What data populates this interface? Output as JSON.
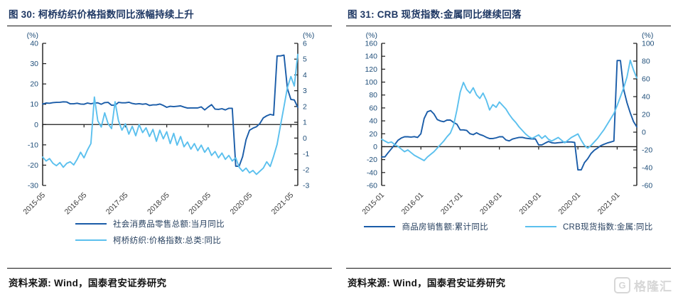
{
  "page": {
    "source_label": "资料来源: Wind，国泰君安证券研究",
    "watermark": {
      "icon_letter": "G",
      "text": "格隆汇"
    }
  },
  "colors": {
    "dark": "#1a5ca8",
    "light": "#5bc0ee",
    "title_navy": "#1f3864",
    "axis_label_navy": "#1f4e79",
    "axis_line": "#1a1a1a",
    "x_label": "#3a3a3a",
    "legend_text": "#27405f",
    "watermark_gray": "#d7d7d7"
  },
  "chart_data": [
    {
      "type": "line",
      "title": "图 30:  柯桥纺织价格指数同比涨幅持续上升",
      "left_axis": {
        "unit": "(%)",
        "min": -30,
        "max": 40,
        "step": 10
      },
      "right_axis": {
        "unit": "(%)",
        "min": -3,
        "max": 6,
        "step": 1
      },
      "x_tick_labels": [
        "2015-05",
        "2016-05",
        "2017-05",
        "2018-05",
        "2019-05",
        "2020-05",
        "2021-05"
      ],
      "x_tick_every_n_points": 12,
      "x_range_note": "monthly 2015-05 to 2021-07",
      "grid": false,
      "legend_position": "bottom",
      "series": [
        {
          "name": "社会消费品零售总额:当月同比",
          "axis": "left",
          "color_key": "dark",
          "values": [
            10.1,
            10.6,
            10.5,
            10.8,
            10.9,
            11.0,
            11.2,
            11.1,
            10.2,
            10.2,
            10.5,
            10.1,
            10.0,
            10.6,
            10.2,
            10.6,
            10.7,
            10.0,
            10.8,
            10.9,
            9.5,
            9.5,
            10.9,
            10.7,
            10.7,
            11.0,
            10.4,
            10.1,
            10.3,
            10.0,
            10.2,
            9.4,
            9.7,
            9.7,
            10.1,
            9.4,
            8.5,
            9.0,
            8.8,
            9.0,
            9.2,
            8.6,
            8.1,
            8.2,
            8.2,
            8.2,
            8.7,
            7.2,
            8.6,
            9.8,
            7.6,
            7.5,
            7.8,
            7.2,
            8.0,
            8.0,
            -20.5,
            -20.5,
            -15.8,
            -7.5,
            -2.8,
            -1.8,
            -1.1,
            0.5,
            3.3,
            4.3,
            5.0,
            4.6,
            33.8,
            33.8,
            34.2,
            17.7,
            12.4,
            12.1,
            8.5
          ]
        },
        {
          "name": "柯桥纺织:价格指数:总类:同比",
          "axis": "right",
          "color_key": "light",
          "values": [
            -1.2,
            -1.45,
            -1.3,
            -1.6,
            -1.75,
            -1.55,
            -1.85,
            -1.6,
            -1.5,
            -1.7,
            -1.35,
            -0.9,
            -1.25,
            -0.75,
            -0.35,
            2.6,
            1.1,
            0.7,
            1.6,
            0.9,
            0.6,
            2.3,
            1.1,
            0.5,
            0.9,
            0.25,
            0.75,
            0.15,
            0.85,
            0.35,
            0.65,
            0.1,
            0.55,
            -0.2,
            0.5,
            -0.05,
            0.4,
            -0.35,
            0.3,
            -0.45,
            0.1,
            -0.55,
            -0.25,
            -0.7,
            -0.35,
            -0.8,
            -0.45,
            -0.9,
            -0.6,
            -1.1,
            -0.85,
            -1.25,
            -0.95,
            -1.35,
            -1.1,
            -1.45,
            -1.25,
            -1.85,
            -2.1,
            -1.9,
            -2.2,
            -2.05,
            -2.3,
            -2.1,
            -1.9,
            -1.5,
            -1.8,
            -1.15,
            -0.4,
            0.8,
            2.0,
            3.2,
            3.9,
            3.3,
            5.3
          ]
        }
      ]
    },
    {
      "type": "line",
      "title": "图 31: CRB 现货指数:金属同比继续回落",
      "left_axis": {
        "unit": "(%)",
        "min": -60,
        "max": 160,
        "step": 20
      },
      "right_axis": {
        "unit": "(%)",
        "min": -60,
        "max": 100,
        "step": 20
      },
      "x_tick_labels": [
        "2015-01",
        "2016-01",
        "2017-01",
        "2018-01",
        "2019-01",
        "2020-01",
        "2021-01"
      ],
      "x_tick_every_n_points": 12,
      "x_range_note": "monthly 2015-01 to 2021-07",
      "grid": false,
      "legend_position": "bottom",
      "series": [
        {
          "name": "商品房销售额:累计同比",
          "axis": "left",
          "color_key": "dark",
          "values": [
            -15.8,
            -15.8,
            -9.2,
            -3.1,
            3.1,
            10.0,
            13.4,
            15.3,
            15.3,
            14.9,
            15.6,
            14.4,
            20.0,
            43.6,
            54.1,
            55.9,
            50.7,
            42.1,
            39.8,
            38.7,
            41.3,
            41.2,
            37.5,
            34.8,
            26.0,
            26.0,
            25.1,
            20.1,
            18.6,
            21.5,
            18.9,
            17.2,
            14.6,
            12.6,
            12.7,
            13.7,
            15.3,
            15.3,
            10.4,
            9.0,
            11.8,
            13.2,
            14.4,
            14.5,
            13.3,
            12.5,
            12.1,
            12.2,
            2.8,
            2.8,
            5.6,
            8.1,
            6.1,
            5.6,
            6.2,
            6.7,
            7.1,
            7.3,
            7.3,
            6.5,
            -35.9,
            -35.9,
            -24.7,
            -18.6,
            -10.6,
            -5.4,
            -2.1,
            1.6,
            3.8,
            5.8,
            7.2,
            8.7,
            133.4,
            133.4,
            88.5,
            68.2,
            52.4,
            38.9,
            30.7
          ]
        },
        {
          "name": "CRB现货指数:金属:同比",
          "axis": "right",
          "color_key": "light",
          "values": [
            -8,
            -10,
            -12,
            -11,
            -14,
            -16,
            -19,
            -22,
            -20,
            -23,
            -26,
            -28,
            -30,
            -32,
            -28,
            -25,
            -22,
            -18,
            -14,
            -10,
            -5,
            -1,
            8,
            25,
            45,
            56,
            48,
            44,
            50,
            42,
            38,
            44,
            36,
            25,
            31,
            28,
            34,
            30,
            26,
            20,
            15,
            11,
            6,
            2,
            -2,
            -5,
            -7,
            -5,
            -3,
            -7,
            -4,
            -8,
            -10,
            -8,
            -6,
            -9,
            -12,
            -9,
            -6,
            -4,
            -2,
            -9,
            -15,
            -18,
            -15,
            -11,
            -7,
            -2,
            3,
            9,
            15,
            21,
            30,
            40,
            50,
            62,
            81,
            70,
            61
          ]
        }
      ]
    }
  ]
}
